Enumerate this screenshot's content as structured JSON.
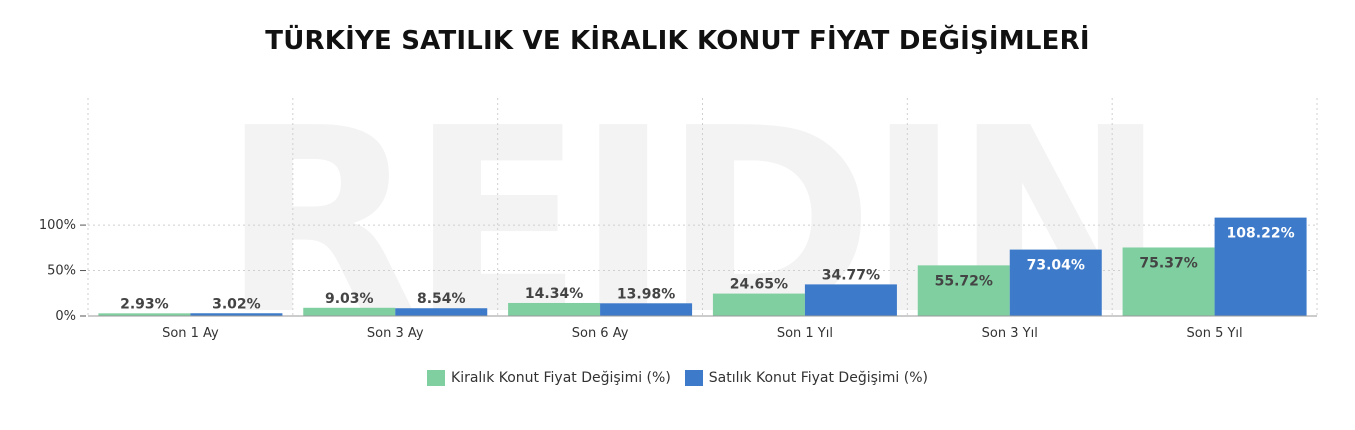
{
  "title": "TÜRKİYE SATILIK VE KİRALIK KONUT FİYAT DEĞİŞİMLERİ",
  "watermark": "REIDIN",
  "chart_data": {
    "type": "bar",
    "categories": [
      "Son 1 Ay",
      "Son 3 Ay",
      "Son 6 Ay",
      "Son 1 Yıl",
      "Son 3 Yıl",
      "Son 5 Yıl"
    ],
    "series": [
      {
        "name": "Kiralık Konut Fiyat Değişimi (%)",
        "color": "#80cfa0",
        "values": [
          2.93,
          9.03,
          14.34,
          24.65,
          55.72,
          75.37
        ],
        "labels": [
          "2.93%",
          "9.03%",
          "14.34%",
          "24.65%",
          "55.72%",
          "75.37%"
        ]
      },
      {
        "name": "Satılık Konut Fiyat Değişimi (%)",
        "color": "#3d7ac9",
        "values": [
          3.02,
          8.54,
          13.98,
          34.77,
          73.04,
          108.22
        ],
        "labels": [
          "3.02%",
          "8.54%",
          "13.98%",
          "34.77%",
          "73.04%",
          "108.22%"
        ]
      }
    ],
    "yticks": [
      0,
      50,
      100
    ],
    "ytick_labels": [
      "0%",
      "50%",
      "100%"
    ],
    "ylim": [
      0,
      120
    ],
    "grid": true,
    "legend_position": "bottom-center"
  }
}
